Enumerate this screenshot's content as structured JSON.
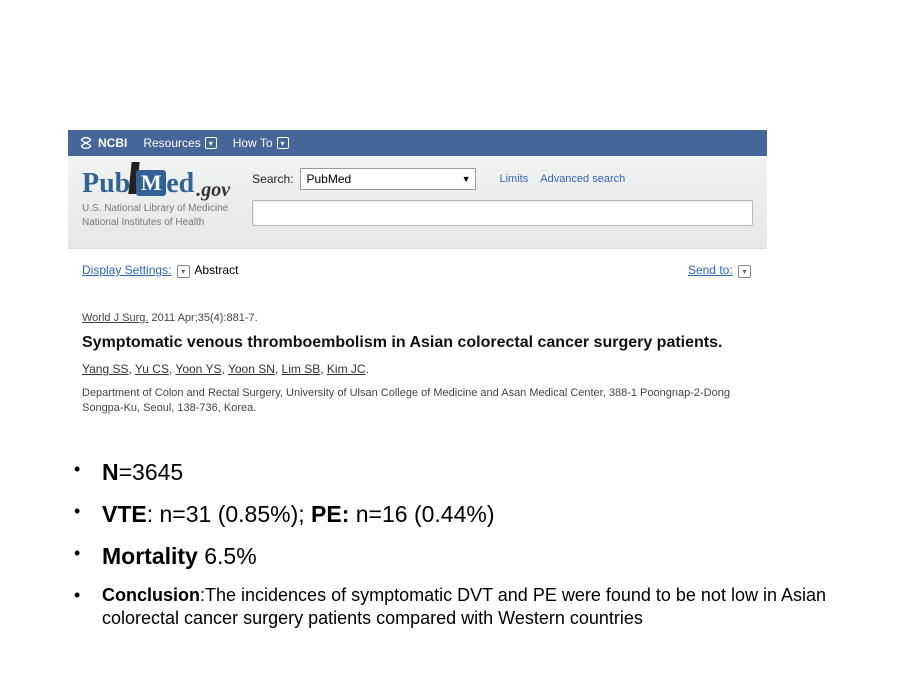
{
  "ncbi_bar": {
    "brand": "NCBI",
    "resources": "Resources",
    "howto": "How To"
  },
  "pubmed_logo": {
    "pub": "Pub",
    "m": "M",
    "ed": "ed",
    "gov": ".gov"
  },
  "nlm": {
    "line1": "U.S. National Library of Medicine",
    "line2": "National Institutes of Health"
  },
  "search": {
    "label": "Search:",
    "scope": "PubMed",
    "limits": "Limits",
    "advanced": "Advanced search",
    "query": ""
  },
  "toolbar": {
    "display_settings": "Display Settings:",
    "mode": "Abstract",
    "send_to": "Send to:"
  },
  "citation": {
    "journal": "World J Surg.",
    "rest": " 2011 Apr;35(4):881-7."
  },
  "article": {
    "title": "Symptomatic venous thromboembolism in Asian colorectal cancer surgery patients.",
    "authors": [
      "Yang SS",
      "Yu CS",
      "Yoon YS",
      "Yoon SN",
      "Lim SB",
      "Kim JC"
    ],
    "affiliation": "Department of Colon and Rectal Surgery, University of Ulsan College of Medicine and Asan Medical Center, 388-1 Poongnap-2-Dong Songpa-Ku, Seoul, 138-736, Korea."
  },
  "bullets": {
    "b1": {
      "label": "N",
      "eq": "=3645"
    },
    "b2": {
      "vte_lbl": "VTE",
      "vte_txt": ": n=31 (0.85%); ",
      "pe_lbl": "PE:",
      "pe_txt": " n=16 (0.44%)"
    },
    "b3": {
      "label": "Mortality",
      "val": " 6.5%"
    },
    "b4": {
      "label": "Conclusion",
      "txt": ":The incidences of symptomatic DVT and PE were found to be not low in Asian colorectal cancer surgery patients compared with Western countries"
    }
  }
}
